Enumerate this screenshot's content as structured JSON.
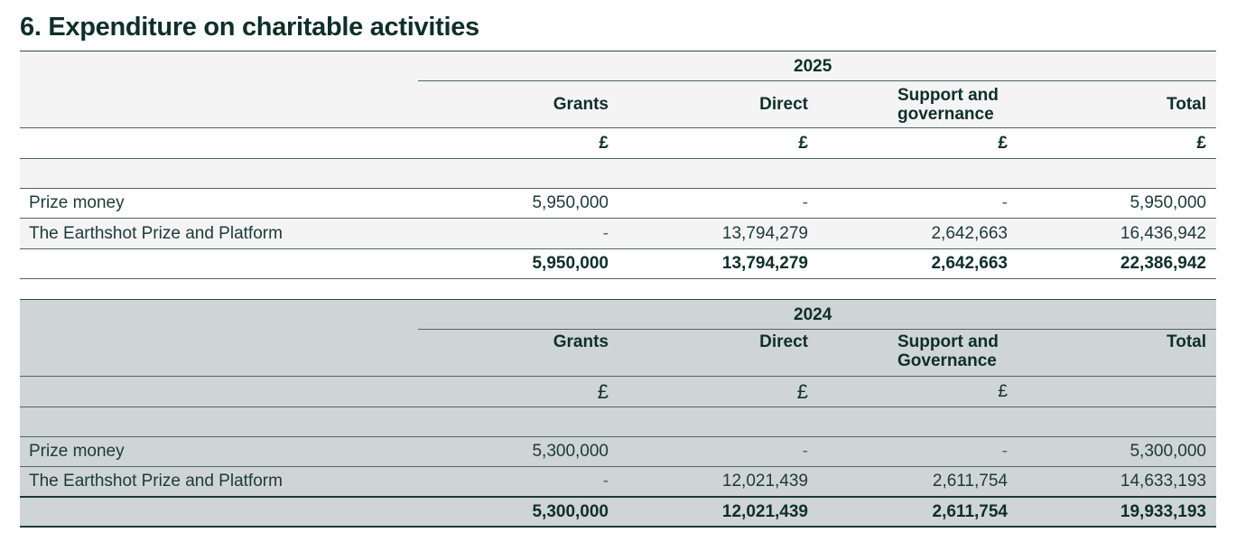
{
  "title": "6. Expenditure on charitable activities",
  "colors": {
    "grey_band": "#f4f4f4",
    "dark_band": "#cfd5d4",
    "text": "#1d3a34"
  },
  "tables": [
    {
      "year": "2025",
      "columns": [
        "Grants",
        "Direct",
        "Support and governance",
        "Total"
      ],
      "col_lines": [
        [
          "Grants"
        ],
        [
          "Direct"
        ],
        [
          "Support and",
          "governance"
        ],
        [
          "Total"
        ]
      ],
      "units": [
        "£",
        "£",
        "£",
        "£"
      ],
      "rows": [
        {
          "label": "Prize money",
          "values": [
            "5,950,000",
            "-",
            "-",
            "5,950,000"
          ]
        },
        {
          "label": "The Earthshot Prize and Platform",
          "values": [
            "-",
            "13,794,279",
            "2,642,663",
            "16,436,942"
          ]
        }
      ],
      "total": [
        "5,950,000",
        "13,794,279",
        "2,642,663",
        "22,386,942"
      ]
    },
    {
      "year": "2024",
      "columns": [
        "Grants",
        "Direct",
        "Support and Governance",
        "Total"
      ],
      "col_lines": [
        [
          "Grants"
        ],
        [
          "Direct"
        ],
        [
          "Support and",
          "Governance"
        ],
        [
          "Total"
        ]
      ],
      "units": [
        "£",
        "£",
        "£",
        ""
      ],
      "rows": [
        {
          "label": "Prize money",
          "values": [
            "5,300,000",
            "-",
            "-",
            "5,300,000"
          ]
        },
        {
          "label": "The Earthshot Prize and Platform",
          "values": [
            "-",
            "12,021,439",
            "2,611,754",
            "14,633,193"
          ]
        }
      ],
      "total": [
        "5,300,000",
        "12,021,439",
        "2,611,754",
        "19,933,193"
      ]
    }
  ]
}
